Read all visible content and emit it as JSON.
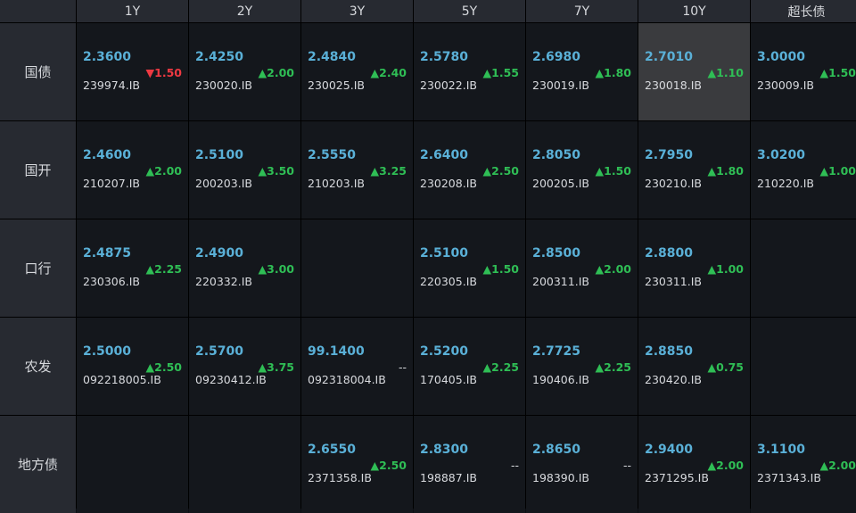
{
  "columns": [
    "1Y",
    "2Y",
    "3Y",
    "5Y",
    "7Y",
    "10Y",
    "超长债"
  ],
  "colors": {
    "up": "#2fbe55",
    "down": "#ee3942",
    "yield": "#5ab0d7",
    "highlight": "#3a3b3e"
  },
  "rows": [
    {
      "label": "国债",
      "cells": [
        {
          "yield": "2.3600",
          "code": "239974.IB",
          "change": "1.50",
          "dir": "down"
        },
        {
          "yield": "2.4250",
          "code": "230020.IB",
          "change": "2.00",
          "dir": "up"
        },
        {
          "yield": "2.4840",
          "code": "230025.IB",
          "change": "2.40",
          "dir": "up"
        },
        {
          "yield": "2.5780",
          "code": "230022.IB",
          "change": "1.55",
          "dir": "up"
        },
        {
          "yield": "2.6980",
          "code": "230019.IB",
          "change": "1.80",
          "dir": "up"
        },
        {
          "yield": "2.7010",
          "code": "230018.IB",
          "change": "1.10",
          "dir": "up",
          "selected": true
        },
        {
          "yield": "3.0000",
          "code": "230009.IB",
          "change": "1.50",
          "dir": "up"
        }
      ]
    },
    {
      "label": "国开",
      "cells": [
        {
          "yield": "2.4600",
          "code": "210207.IB",
          "change": "2.00",
          "dir": "up"
        },
        {
          "yield": "2.5100",
          "code": "200203.IB",
          "change": "3.50",
          "dir": "up"
        },
        {
          "yield": "2.5550",
          "code": "210203.IB",
          "change": "3.25",
          "dir": "up"
        },
        {
          "yield": "2.6400",
          "code": "230208.IB",
          "change": "2.50",
          "dir": "up"
        },
        {
          "yield": "2.8050",
          "code": "200205.IB",
          "change": "1.50",
          "dir": "up"
        },
        {
          "yield": "2.7950",
          "code": "230210.IB",
          "change": "1.80",
          "dir": "up"
        },
        {
          "yield": "3.0200",
          "code": "210220.IB",
          "change": "1.00",
          "dir": "up"
        }
      ]
    },
    {
      "label": "口行",
      "cells": [
        {
          "yield": "2.4875",
          "code": "230306.IB",
          "change": "2.25",
          "dir": "up"
        },
        {
          "yield": "2.4900",
          "code": "220332.IB",
          "change": "3.00",
          "dir": "up"
        },
        null,
        {
          "yield": "2.5100",
          "code": "220305.IB",
          "change": "1.50",
          "dir": "up"
        },
        {
          "yield": "2.8500",
          "code": "200311.IB",
          "change": "2.00",
          "dir": "up"
        },
        {
          "yield": "2.8800",
          "code": "230311.IB",
          "change": "1.00",
          "dir": "up"
        },
        null
      ]
    },
    {
      "label": "农发",
      "cells": [
        {
          "yield": "2.5000",
          "code": "092218005.IB",
          "change": "2.50",
          "dir": "up"
        },
        {
          "yield": "2.5700",
          "code": "09230412.IB",
          "change": "3.75",
          "dir": "up"
        },
        {
          "yield": "99.1400",
          "code": "092318004.IB",
          "change": "--",
          "dir": "flat"
        },
        {
          "yield": "2.5200",
          "code": "170405.IB",
          "change": "2.25",
          "dir": "up"
        },
        {
          "yield": "2.7725",
          "code": "190406.IB",
          "change": "2.25",
          "dir": "up"
        },
        {
          "yield": "2.8850",
          "code": "230420.IB",
          "change": "0.75",
          "dir": "up"
        },
        null
      ]
    },
    {
      "label": "地方债",
      "cells": [
        null,
        null,
        {
          "yield": "2.6550",
          "code": "2371358.IB",
          "change": "2.50",
          "dir": "up"
        },
        {
          "yield": "2.8300",
          "code": "198887.IB",
          "change": "--",
          "dir": "flat"
        },
        {
          "yield": "2.8650",
          "code": "198390.IB",
          "change": "--",
          "dir": "flat"
        },
        {
          "yield": "2.9400",
          "code": "2371295.IB",
          "change": "2.00",
          "dir": "up"
        },
        {
          "yield": "3.1100",
          "code": "2371343.IB",
          "change": "2.00",
          "dir": "up"
        }
      ]
    }
  ]
}
